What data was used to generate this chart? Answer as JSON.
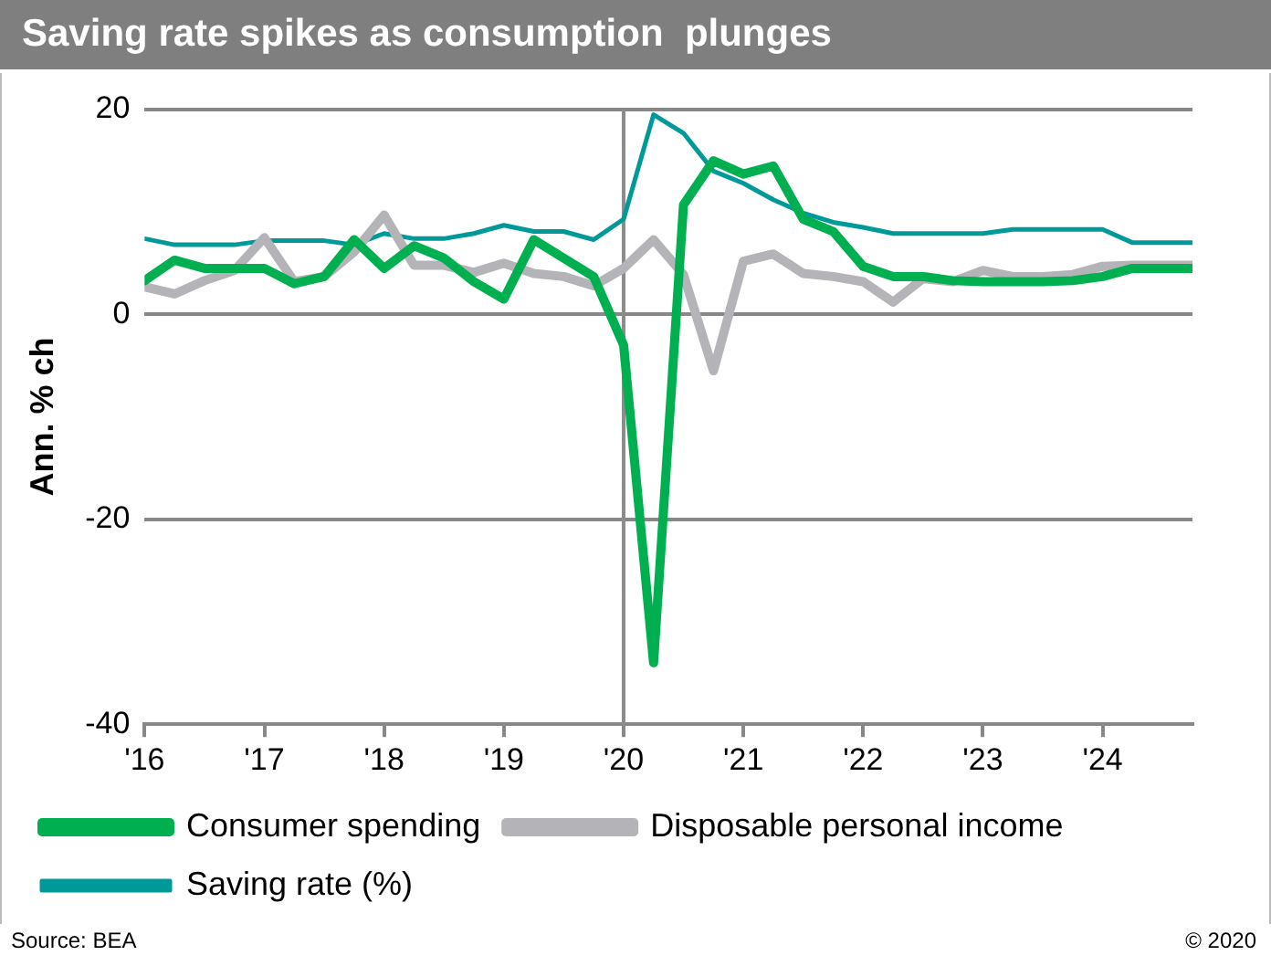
{
  "chart_data": {
    "type": "line",
    "title": "Saving rate spikes as consumption  plunges",
    "ylabel": "Ann. % ch",
    "x": [
      2016,
      2016.25,
      2016.5,
      2016.75,
      2017,
      2017.25,
      2017.5,
      2017.75,
      2018,
      2018.25,
      2018.5,
      2018.75,
      2019,
      2019.25,
      2019.5,
      2019.75,
      2020,
      2020.25,
      2020.5,
      2020.75,
      2021,
      2021.25,
      2021.5,
      2021.75,
      2022,
      2022.25,
      2022.5,
      2022.75,
      2023,
      2023.25,
      2023.5,
      2023.75,
      2024,
      2024.25,
      2024.5,
      2024.75
    ],
    "series": [
      {
        "name": "Consumer spending",
        "color": "#00b050",
        "values": [
          3.3,
          5.3,
          4.5,
          4.5,
          4.5,
          3.0,
          3.7,
          7.3,
          4.5,
          6.7,
          5.5,
          3.2,
          1.5,
          7.3,
          5.5,
          3.7,
          -3.0,
          -34,
          10.7,
          15.0,
          13.7,
          14.5,
          9.3,
          8.1,
          4.7,
          3.7,
          3.7,
          3.3,
          3.2,
          3.2,
          3.2,
          3.3,
          3.7,
          4.5,
          4.5,
          4.5
        ]
      },
      {
        "name": "Disposable personal income",
        "color": "#b4b4b8",
        "values": [
          2.7,
          2.0,
          3.3,
          4.3,
          7.5,
          3.2,
          3.7,
          6.1,
          9.7,
          4.8,
          4.8,
          4.1,
          5.0,
          4.0,
          3.7,
          2.8,
          4.5,
          7.3,
          3.9,
          -5.5,
          5.2,
          5.9,
          4.0,
          3.7,
          3.2,
          1.2,
          3.5,
          3.2,
          4.3,
          3.7,
          3.7,
          3.9,
          4.7,
          4.8,
          4.8,
          4.8
        ]
      },
      {
        "name": "Saving rate (%)",
        "color": "#009999",
        "values": [
          7.4,
          6.8,
          6.8,
          6.8,
          7.2,
          7.2,
          7.2,
          6.8,
          7.9,
          7.4,
          7.4,
          7.9,
          8.7,
          8.1,
          8.1,
          7.3,
          9.3,
          19.5,
          17.7,
          14.0,
          12.8,
          11.2,
          9.9,
          9.0,
          8.5,
          7.9,
          7.9,
          7.9,
          7.9,
          8.3,
          8.3,
          8.3,
          8.3,
          7.0,
          7.0,
          7.0
        ]
      }
    ],
    "xlim": [
      2016,
      2024.75
    ],
    "xticks": [
      {
        "value": 2016,
        "label": "'16"
      },
      {
        "value": 2017,
        "label": "'17"
      },
      {
        "value": 2018,
        "label": "'18"
      },
      {
        "value": 2019,
        "label": "'19"
      },
      {
        "value": 2020,
        "label": "'20"
      },
      {
        "value": 2021,
        "label": "'21"
      },
      {
        "value": 2022,
        "label": "'22"
      },
      {
        "value": 2023,
        "label": "'23"
      },
      {
        "value": 2024,
        "label": "'24"
      }
    ],
    "ylim": [
      -40,
      20
    ],
    "yticks": [
      -40,
      -20,
      0,
      20
    ],
    "ref_lines": [
      {
        "axis": "x",
        "value": 2020,
        "color": "#8c8c8c"
      }
    ],
    "grid": "y",
    "legend": "bottom",
    "marker": "none",
    "annotations": [
      "Source: BEA",
      "© 2020"
    ]
  }
}
